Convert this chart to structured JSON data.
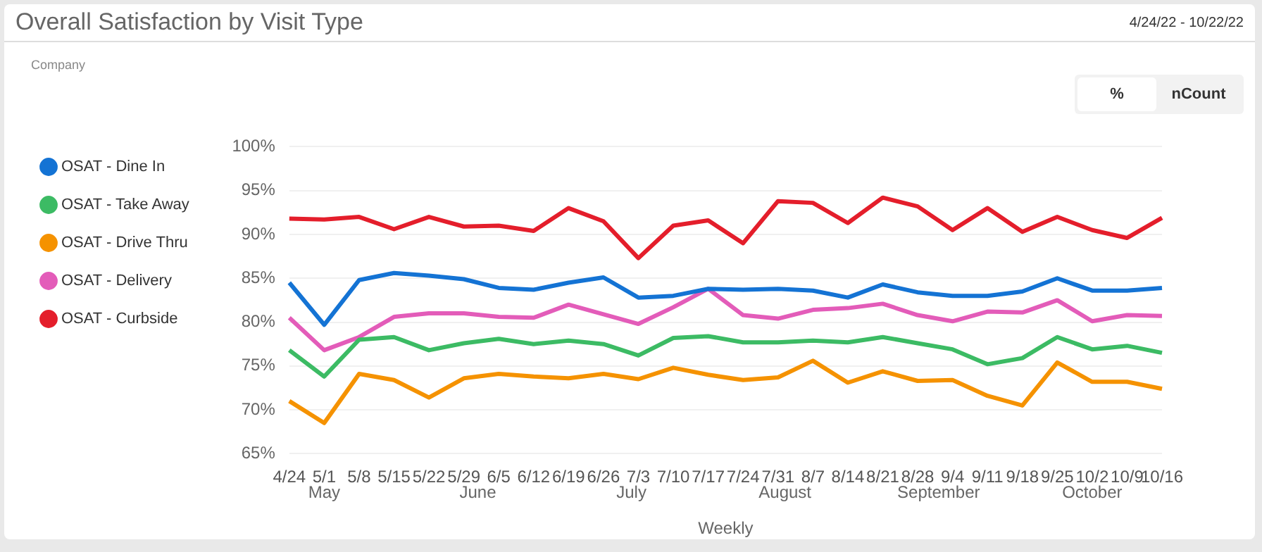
{
  "chart_data": {
    "type": "line",
    "title": "Overall Satisfaction by Visit Type",
    "xlabel": "Weekly",
    "categories": [
      "4/24",
      "5/1",
      "5/8",
      "5/15",
      "5/22",
      "5/29",
      "6/5",
      "6/12",
      "6/19",
      "6/26",
      "7/3",
      "7/10",
      "7/17",
      "7/24",
      "7/31",
      "8/7",
      "8/14",
      "8/21",
      "8/28",
      "9/4",
      "9/11",
      "9/18",
      "9/25",
      "10/2",
      "10/9",
      "10/16"
    ],
    "series": [
      {
        "name": "OSAT - Dine In",
        "color": "#1473d4",
        "values": [
          84.5,
          79.7,
          84.8,
          85.6,
          85.3,
          84.9,
          83.9,
          83.7,
          84.5,
          85.1,
          82.8,
          83.0,
          83.8,
          83.7,
          83.8,
          83.6,
          82.8,
          84.3,
          83.4,
          83.0,
          83.0,
          83.5,
          85.0,
          83.6,
          83.6,
          83.9
        ]
      },
      {
        "name": "OSAT - Take Away",
        "color": "#3cbb64",
        "values": [
          76.8,
          73.8,
          78.0,
          78.3,
          76.8,
          77.6,
          78.1,
          77.5,
          77.9,
          77.5,
          76.2,
          78.2,
          78.4,
          77.7,
          77.7,
          77.9,
          77.7,
          78.3,
          77.6,
          76.9,
          75.2,
          75.9,
          78.3,
          76.9,
          77.3,
          76.5
        ]
      },
      {
        "name": "OSAT - Drive Thru",
        "color": "#f59200",
        "values": [
          71.0,
          68.5,
          74.1,
          73.4,
          71.4,
          73.6,
          74.1,
          73.8,
          73.6,
          74.1,
          73.5,
          74.8,
          74.0,
          73.4,
          73.7,
          75.6,
          73.1,
          74.4,
          73.3,
          73.4,
          71.6,
          70.5,
          75.4,
          73.2,
          73.2,
          72.4
        ]
      },
      {
        "name": "OSAT - Delivery",
        "color": "#e35cb9",
        "values": [
          80.5,
          76.8,
          78.3,
          80.6,
          81.0,
          81.0,
          80.6,
          80.5,
          82.0,
          80.9,
          79.8,
          81.7,
          83.8,
          80.8,
          80.4,
          81.4,
          81.6,
          82.1,
          80.8,
          80.1,
          81.2,
          81.1,
          82.5,
          80.1,
          80.8,
          80.7
        ]
      },
      {
        "name": "OSAT - Curbside",
        "color": "#e41e2b",
        "values": [
          91.8,
          91.7,
          92.0,
          90.6,
          92.0,
          90.9,
          91.0,
          90.4,
          93.0,
          91.5,
          87.3,
          91.0,
          91.6,
          89.0,
          93.8,
          93.6,
          91.3,
          94.2,
          93.2,
          90.5,
          93.0,
          90.3,
          92.0,
          90.5,
          89.6,
          91.9
        ]
      }
    ],
    "ylim": [
      65,
      100
    ],
    "yticks": [
      {
        "value": 65,
        "label": "65%"
      },
      {
        "value": 70,
        "label": "70%"
      },
      {
        "value": 75,
        "label": "75%"
      },
      {
        "value": 80,
        "label": "80%"
      },
      {
        "value": 85,
        "label": "85%"
      },
      {
        "value": 90,
        "label": "90%"
      },
      {
        "value": 95,
        "label": "95%"
      },
      {
        "value": 100,
        "label": "100%"
      }
    ],
    "grid": "y",
    "legend": "left",
    "marker": "none",
    "line_style": "solid",
    "annotations": [
      "4/24/22 - 10/22/22",
      "Company",
      "%",
      "nCount",
      "May",
      "June",
      "July",
      "August",
      "September",
      "October"
    ]
  }
}
